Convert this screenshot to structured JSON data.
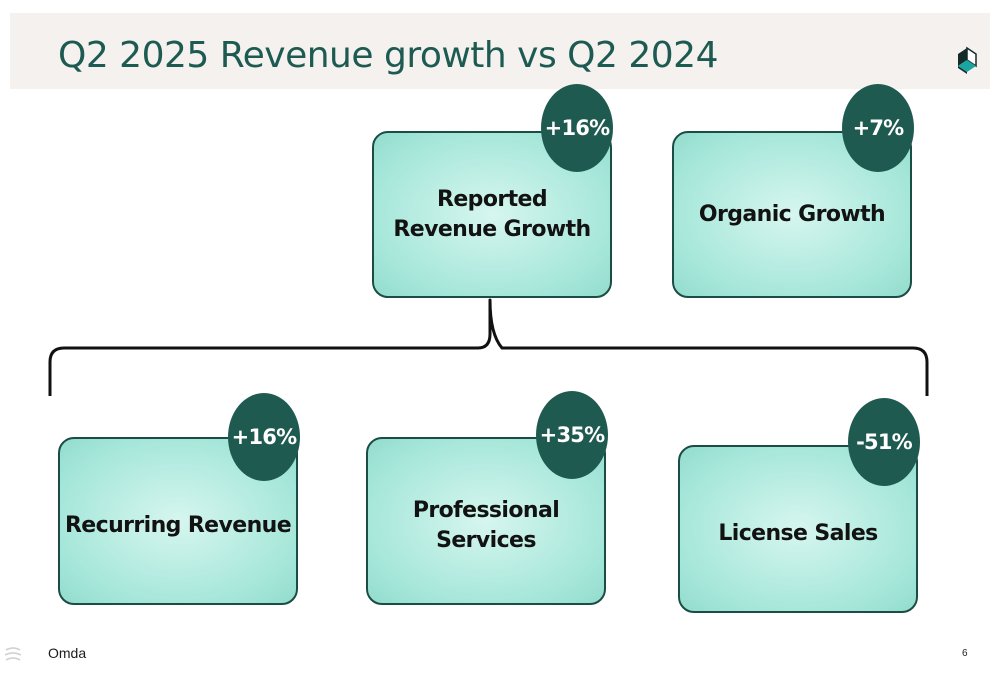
{
  "title": "Q2 2025 Revenue growth vs Q2 2024",
  "colors": {
    "title": "#1d5a52",
    "badge": "#1f5a50",
    "box_fill": "#a4e6d9",
    "box_border": "#1b4d45"
  },
  "top_boxes": [
    {
      "label": "Reported\nRevenue Growth",
      "badge": "+16%"
    },
    {
      "label": "Organic Growth",
      "badge": "+7%"
    }
  ],
  "bottom_boxes": [
    {
      "label": "Recurring Revenue",
      "badge": "+16%"
    },
    {
      "label": "Professional Services",
      "badge": "+35%"
    },
    {
      "label": "License Sales",
      "badge": "-51%"
    }
  ],
  "footer": {
    "brand": "Omda",
    "page_number": "6"
  },
  "icons": {
    "logo": "omda-logo-icon",
    "footer": "omda-swirl-icon"
  }
}
